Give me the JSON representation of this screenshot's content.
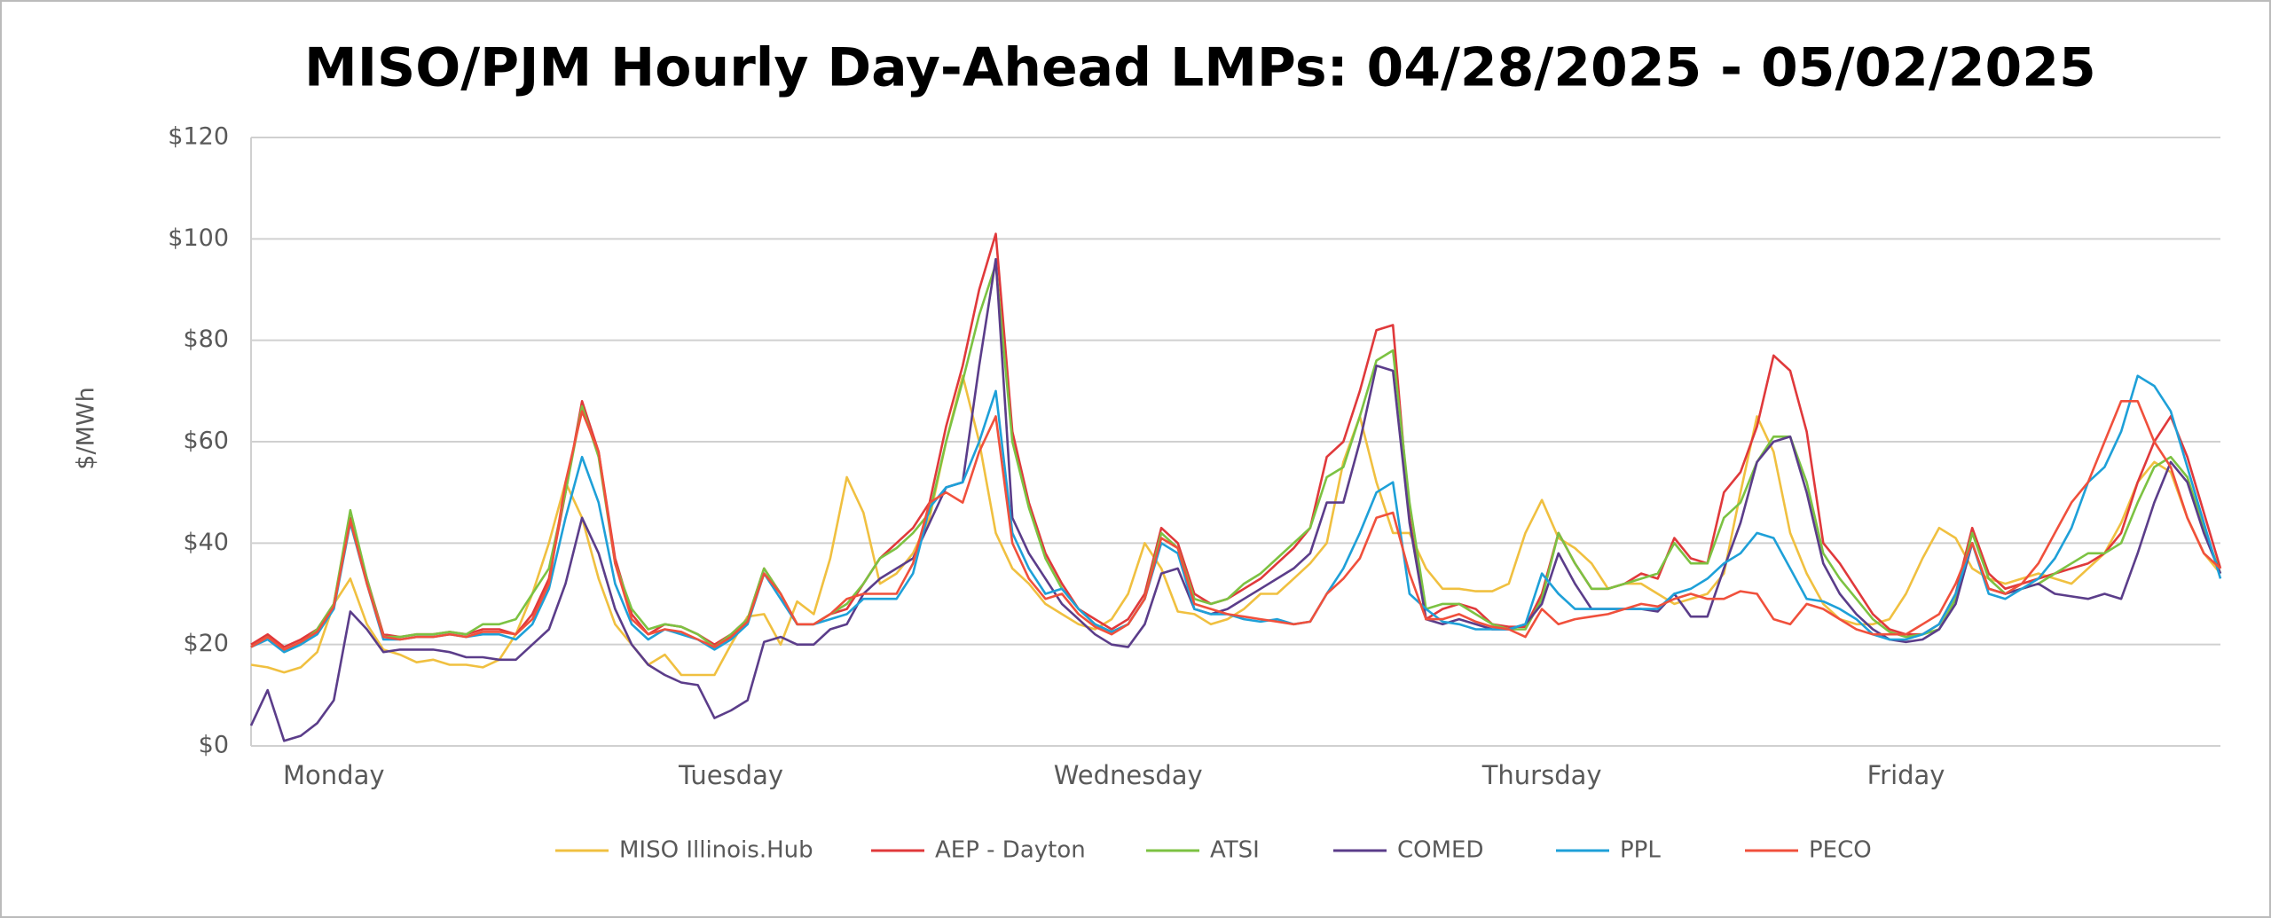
{
  "chart_data": {
    "type": "line",
    "title": "MISO/PJM Hourly Day-Ahead LMPs: 04/28/2025 - 05/02/2025",
    "y_label": "$/MWh",
    "categories": [
      null,
      null,
      null,
      null,
      null,
      "Monday",
      null,
      null,
      null,
      null,
      null,
      null,
      null,
      null,
      null,
      null,
      null,
      null,
      null,
      null,
      null,
      null,
      null,
      null,
      null,
      null,
      null,
      null,
      null,
      "Tuesday",
      null,
      null,
      null,
      null,
      null,
      null,
      null,
      null,
      null,
      null,
      null,
      null,
      null,
      null,
      null,
      null,
      null,
      null,
      null,
      null,
      null,
      null,
      null,
      "Wednesday",
      null,
      null,
      null,
      null,
      null,
      null,
      null,
      null,
      null,
      null,
      null,
      null,
      null,
      null,
      null,
      null,
      null,
      null,
      null,
      null,
      null,
      null,
      null,
      null,
      "Thursday",
      null,
      null,
      null,
      null,
      null,
      null,
      null,
      null,
      null,
      null,
      null,
      null,
      null,
      null,
      null,
      null,
      null,
      null,
      null,
      null,
      null,
      "Friday",
      null,
      null,
      null,
      null,
      null,
      null,
      null,
      null,
      null,
      null,
      null,
      null,
      null,
      null,
      null,
      null,
      null,
      null,
      null
    ],
    "ylim": [
      0,
      120
    ],
    "yticks": [
      {
        "value": 0,
        "label": "$0"
      },
      {
        "value": 20,
        "label": "$20"
      },
      {
        "value": 40,
        "label": "$40"
      },
      {
        "value": 60,
        "label": "$60"
      },
      {
        "value": 80,
        "label": "$80"
      },
      {
        "value": 100,
        "label": "$100"
      },
      {
        "value": 120,
        "label": "$120"
      }
    ],
    "grid": true,
    "legend": "bottom",
    "series": [
      {
        "name": "MISO Illinois.Hub",
        "color": "#f0c040",
        "values": [
          16,
          15.5,
          14.5,
          15.5,
          18.5,
          28,
          33,
          24,
          19,
          18,
          16.5,
          17,
          16,
          16,
          15.5,
          17,
          22,
          30,
          40,
          52,
          45,
          33,
          24,
          20,
          16,
          18,
          14,
          14,
          14,
          20,
          25.5,
          26,
          20,
          28.5,
          26,
          37,
          53,
          46,
          32,
          34,
          38,
          45,
          60,
          73,
          60,
          42,
          35,
          32,
          28,
          26,
          24,
          23,
          25,
          30,
          40,
          35,
          26.5,
          26,
          24,
          25,
          27,
          30,
          30,
          33,
          36,
          40,
          56,
          65,
          52,
          42,
          42,
          35,
          31,
          31,
          30.5,
          30.5,
          32,
          42,
          48.5,
          41,
          39,
          36,
          31,
          32,
          32,
          30,
          28,
          29,
          30,
          34,
          50,
          65,
          58,
          42,
          34,
          28,
          25,
          24,
          24,
          25,
          30,
          37,
          43,
          41,
          35,
          33,
          32,
          33,
          34,
          33,
          32,
          35,
          38,
          44,
          52,
          56,
          54,
          45,
          38,
          34
        ]
      },
      {
        "name": "AEP - Dayton",
        "color": "#e0393b",
        "values": [
          20,
          22,
          19.5,
          21,
          23,
          28,
          45,
          33,
          22,
          21.5,
          22,
          22,
          22.5,
          22,
          23,
          23,
          22,
          26,
          33,
          50,
          68,
          58,
          37,
          26,
          22,
          24,
          23.5,
          22,
          20,
          22,
          25,
          35,
          30,
          24,
          24,
          26,
          27,
          32,
          37,
          40,
          43,
          48,
          63,
          75,
          90,
          101,
          62,
          48,
          38,
          32,
          27,
          25,
          23,
          25,
          30,
          43,
          40,
          30,
          28,
          29,
          31,
          33,
          36,
          39,
          43,
          57,
          60,
          70,
          82,
          83,
          45,
          25,
          27,
          28,
          27,
          24,
          23.5,
          23.5,
          30,
          42,
          36,
          31,
          31,
          32,
          34,
          33,
          41,
          37,
          36,
          50,
          54,
          63,
          77,
          74,
          62,
          40,
          36,
          31,
          26,
          23,
          22,
          22,
          24,
          30,
          43,
          34,
          31,
          32,
          33,
          34,
          35,
          36,
          38,
          42,
          52,
          60,
          65,
          57,
          46,
          35
        ]
      },
      {
        "name": "ATSI",
        "color": "#7cc242",
        "values": [
          19.5,
          21.5,
          18.5,
          20,
          23,
          28,
          46.5,
          33,
          21.5,
          21.5,
          22,
          22,
          22.5,
          22,
          24,
          24,
          25,
          30,
          35,
          50,
          67,
          57,
          36,
          27,
          23,
          24,
          23.5,
          22,
          19.5,
          22,
          25,
          35,
          30,
          24,
          24,
          26,
          28,
          32,
          37,
          39,
          42,
          46,
          60,
          72,
          85,
          95,
          60,
          47,
          37,
          31,
          27,
          24,
          22.5,
          24,
          29,
          42,
          39,
          29,
          28,
          29,
          32,
          34,
          37,
          40,
          43,
          53,
          55,
          65,
          76,
          78,
          48,
          27,
          28,
          28,
          26,
          24,
          23,
          23,
          29,
          42,
          36,
          31,
          31,
          32,
          33,
          34,
          40,
          36,
          36,
          45,
          48,
          56,
          61,
          61,
          52,
          38,
          33,
          29,
          25,
          22.5,
          21.5,
          22,
          23,
          29,
          42,
          33,
          30,
          31,
          32,
          34,
          36,
          38,
          38,
          40,
          48,
          55,
          57,
          53,
          43,
          34
        ]
      },
      {
        "name": "COMED",
        "color": "#5b3d8a",
        "values": [
          4,
          11,
          1,
          2,
          4.5,
          9,
          26.5,
          23,
          18.5,
          19,
          19,
          19,
          18.5,
          17.5,
          17.5,
          17,
          17,
          20,
          23,
          32,
          45,
          38,
          27,
          20,
          16,
          14,
          12.5,
          12,
          5.5,
          7,
          9,
          20.5,
          21.5,
          20,
          20,
          23,
          24,
          30,
          33,
          35,
          37,
          44,
          51,
          52,
          75,
          96,
          45,
          38,
          33,
          28,
          25,
          22,
          20,
          19.5,
          24,
          34,
          35,
          27,
          26,
          27,
          29,
          31,
          33,
          35,
          38,
          48,
          48,
          60,
          75,
          74,
          44,
          25,
          24,
          25,
          24,
          23,
          23,
          24,
          28,
          38,
          32,
          27,
          27,
          27,
          27,
          26.5,
          30,
          25.5,
          25.5,
          35,
          44,
          56,
          60,
          61,
          50,
          36,
          30,
          26,
          23,
          21,
          20.5,
          21,
          23,
          28,
          40,
          31,
          30,
          31,
          32,
          30,
          29.5,
          29,
          30,
          29,
          38,
          48,
          56,
          52,
          42,
          34
        ]
      },
      {
        "name": "PPL",
        "color": "#1ea0d8",
        "values": [
          19.5,
          21,
          18.5,
          20,
          22,
          27,
          44,
          32,
          21,
          21,
          21.5,
          21.5,
          22,
          21.5,
          22,
          22,
          21,
          24,
          31,
          45,
          57,
          48,
          32,
          24,
          21,
          23,
          22,
          21,
          19,
          21,
          24,
          34,
          29,
          24,
          24,
          25,
          26,
          29,
          29,
          29,
          34,
          47,
          51,
          52,
          60,
          70,
          42,
          35,
          30,
          31,
          27,
          24,
          22.5,
          24,
          29,
          40,
          38,
          27,
          26,
          26,
          25,
          24.5,
          25,
          24,
          24.5,
          30,
          35,
          42,
          50,
          52,
          30,
          27,
          24.5,
          24,
          23,
          23,
          23,
          24,
          34,
          30,
          27,
          27,
          27,
          27,
          27,
          27,
          30,
          31,
          33,
          36,
          38,
          42,
          41,
          35,
          29,
          28.5,
          27,
          25,
          22,
          21,
          21,
          22,
          24,
          30,
          40,
          30,
          29,
          31,
          33,
          37,
          43,
          52,
          55,
          62,
          73,
          71,
          66,
          55,
          44,
          33
        ]
      },
      {
        "name": "PECO",
        "color": "#f0503c",
        "values": [
          19.5,
          21.5,
          19,
          20.5,
          22.5,
          27.5,
          44.5,
          32,
          21.5,
          21,
          21.5,
          21.5,
          22,
          21.5,
          22.5,
          22.5,
          22,
          25,
          32,
          52,
          66,
          58,
          36,
          25,
          22,
          23,
          22.5,
          21,
          19.5,
          21.5,
          24.5,
          34,
          30,
          24,
          24,
          26,
          29,
          30,
          30,
          30,
          36,
          48,
          50,
          48,
          58,
          65,
          40,
          33,
          29,
          30,
          26,
          23.5,
          22,
          24,
          29,
          41,
          39,
          28,
          27,
          26,
          25.5,
          25,
          24.5,
          24,
          24.5,
          30,
          33,
          37,
          45,
          46,
          34,
          25,
          25,
          26,
          24.5,
          23.5,
          23,
          21.5,
          27,
          24,
          25,
          25.5,
          26,
          27,
          28,
          27.5,
          29,
          30,
          29,
          29,
          30.5,
          30,
          25,
          24,
          28,
          27,
          25,
          23,
          22,
          22,
          22,
          24,
          26,
          32,
          40,
          31,
          30,
          32,
          36,
          42,
          48,
          52,
          60,
          68,
          68,
          60,
          55,
          45,
          38,
          35
        ]
      }
    ]
  }
}
